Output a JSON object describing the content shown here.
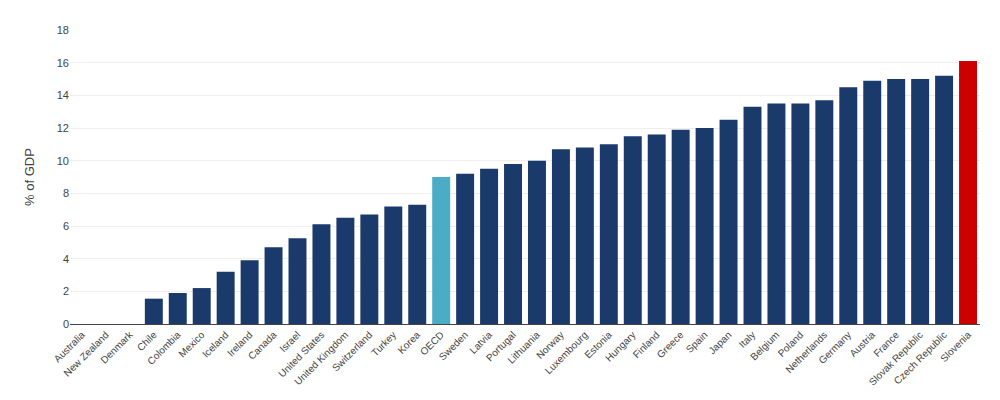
{
  "chart_data": {
    "type": "bar",
    "ylabel": "% of GDP",
    "categories": [
      "Australia",
      "New Zealand",
      "Denmark",
      "Chile",
      "Colombia",
      "Mexico",
      "Iceland",
      "Ireland",
      "Canada",
      "Israel",
      "United States",
      "United Kingdom",
      "Switzerland",
      "Turkey",
      "Korea",
      "OECD",
      "Sweden",
      "Latvia",
      "Portugal",
      "Lithuania",
      "Norway",
      "Luxembourg",
      "Estonia",
      "Hungary",
      "Finland",
      "Greece",
      "Spain",
      "Japan",
      "Italy",
      "Belgium",
      "Poland",
      "Netherlands",
      "Germany",
      "Austria",
      "France",
      "Slovak Republic",
      "Czech Republic",
      "Slovenia"
    ],
    "values": [
      0.0,
      0.0,
      0.0,
      1.55,
      1.9,
      2.2,
      3.2,
      3.9,
      4.7,
      5.25,
      6.1,
      6.5,
      6.7,
      7.2,
      7.3,
      9.0,
      9.2,
      9.5,
      9.8,
      10.0,
      10.7,
      10.8,
      11.0,
      11.5,
      11.6,
      11.9,
      12.0,
      12.5,
      13.3,
      13.5,
      13.5,
      13.7,
      14.5,
      14.9,
      15.0,
      15.0,
      15.2,
      16.1
    ],
    "colors": [
      "#1a3a6b",
      "#1a3a6b",
      "#1a3a6b",
      "#1a3a6b",
      "#1a3a6b",
      "#1a3a6b",
      "#1a3a6b",
      "#1a3a6b",
      "#1a3a6b",
      "#1a3a6b",
      "#1a3a6b",
      "#1a3a6b",
      "#1a3a6b",
      "#1a3a6b",
      "#1a3a6b",
      "#4bacc6",
      "#1a3a6b",
      "#1a3a6b",
      "#1a3a6b",
      "#1a3a6b",
      "#1a3a6b",
      "#1a3a6b",
      "#1a3a6b",
      "#1a3a6b",
      "#1a3a6b",
      "#1a3a6b",
      "#1a3a6b",
      "#1a3a6b",
      "#1a3a6b",
      "#1a3a6b",
      "#1a3a6b",
      "#1a3a6b",
      "#1a3a6b",
      "#1a3a6b",
      "#1a3a6b",
      "#1a3a6b",
      "#1a3a6b",
      "#cc0000"
    ],
    "ylim": [
      0,
      18
    ],
    "yticks": [
      0,
      2,
      4,
      6,
      8,
      10,
      12,
      14,
      16,
      18
    ],
    "grid": true
  }
}
